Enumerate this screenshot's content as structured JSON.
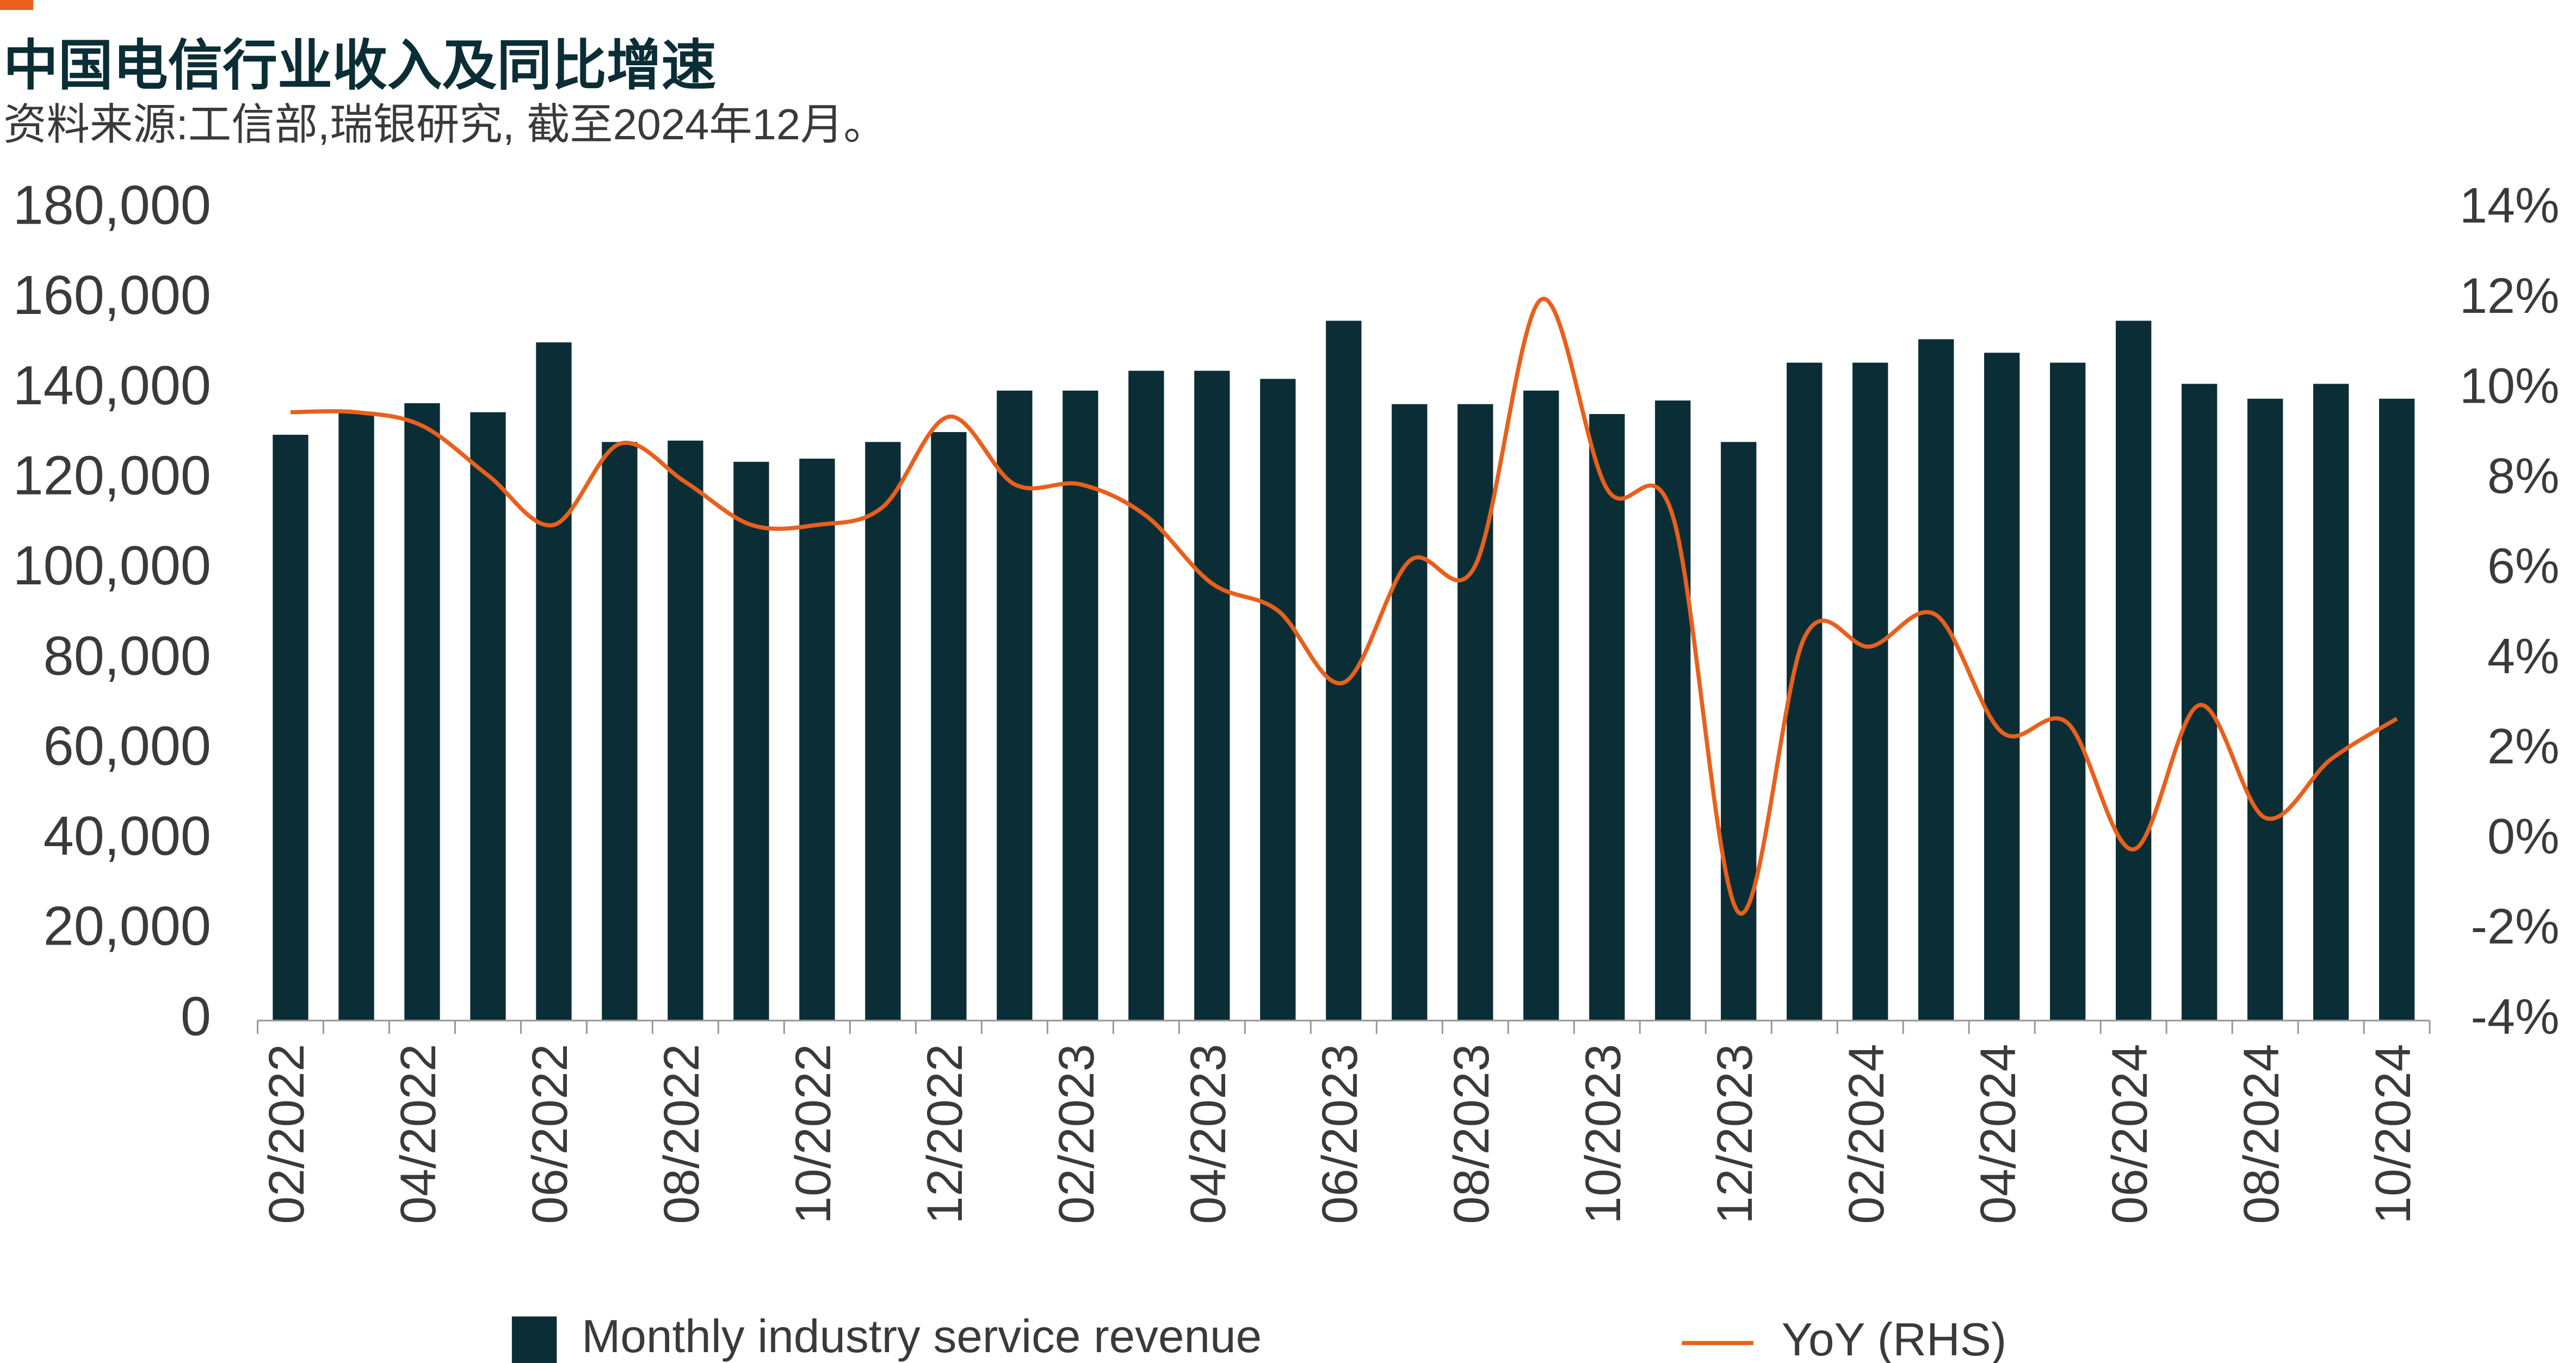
{
  "chart_data": {
    "type": "bar_line",
    "title": "中国电信行业收入及同比增速",
    "subtitle": "资料来源:工信部,瑞银研究, 截至2024年12月。",
    "categories": [
      "02/2022",
      null,
      "04/2022",
      null,
      "06/2022",
      null,
      "08/2022",
      null,
      "10/2022",
      null,
      "12/2022",
      null,
      "02/2023",
      null,
      "04/2023",
      null,
      "06/2023",
      null,
      "08/2023",
      null,
      "10/2023",
      null,
      "12/2023",
      null,
      "02/2024",
      null,
      "04/2024",
      null,
      "06/2024",
      null,
      "08/2024",
      null,
      "10/2024"
    ],
    "series": [
      {
        "name": "Monthly industry service revenue",
        "color": "#0b2e36",
        "type": "bar",
        "values": [
          130000,
          135000,
          137000,
          135000,
          150500,
          128400,
          128700,
          124000,
          124700,
          128400,
          130600,
          139800,
          139800,
          144200,
          144200,
          142400,
          155300,
          136800,
          136800,
          139800,
          134600,
          137600,
          128400,
          146000,
          146000,
          151200,
          148200,
          146000,
          155300,
          141300,
          138000,
          141300,
          138000
        ]
      },
      {
        "name": "YoY (RHS)",
        "color": "#e8601c",
        "type": "line",
        "axis": "y2",
        "values": [
          9.5,
          9.5,
          9.2,
          8.1,
          7.0,
          8.8,
          7.95,
          7.0,
          7.0,
          7.4,
          9.4,
          7.9,
          7.9,
          7.2,
          5.7,
          5.1,
          3.5,
          6.2,
          6.1,
          12.0,
          7.8,
          7.2,
          -1.6,
          4.5,
          4.3,
          5.0,
          2.4,
          2.6,
          -0.2,
          3.0,
          0.5,
          1.8,
          2.7
        ]
      }
    ],
    "ylim": [
      0,
      180000
    ],
    "yticks": [
      0,
      {
        "value": 20000,
        "label": "20,000"
      },
      {
        "value": 40000,
        "label": "40,000"
      },
      {
        "value": 60000,
        "label": "60,000"
      },
      {
        "value": 80000,
        "label": "80,000"
      },
      {
        "value": 100000,
        "label": "100,000"
      },
      {
        "value": 120000,
        "label": "120,000"
      },
      {
        "value": 140000,
        "label": "140,000"
      },
      {
        "value": 160000,
        "label": "160,000"
      },
      {
        "value": 180000,
        "label": "180,000"
      }
    ],
    "y2lim": [
      -4,
      14
    ],
    "y2ticks": [
      {
        "value": -4,
        "label": "-4%"
      },
      {
        "value": -2,
        "label": "-2%"
      },
      {
        "value": 0,
        "label": "0%"
      },
      {
        "value": 2,
        "label": "2%"
      },
      {
        "value": 4,
        "label": "4%"
      },
      {
        "value": 6,
        "label": "6%"
      },
      {
        "value": 8,
        "label": "8%"
      },
      {
        "value": 10,
        "label": "10%"
      },
      {
        "value": 12,
        "label": "12%"
      },
      {
        "value": 14,
        "label": "14%"
      }
    ],
    "grid": false
  }
}
